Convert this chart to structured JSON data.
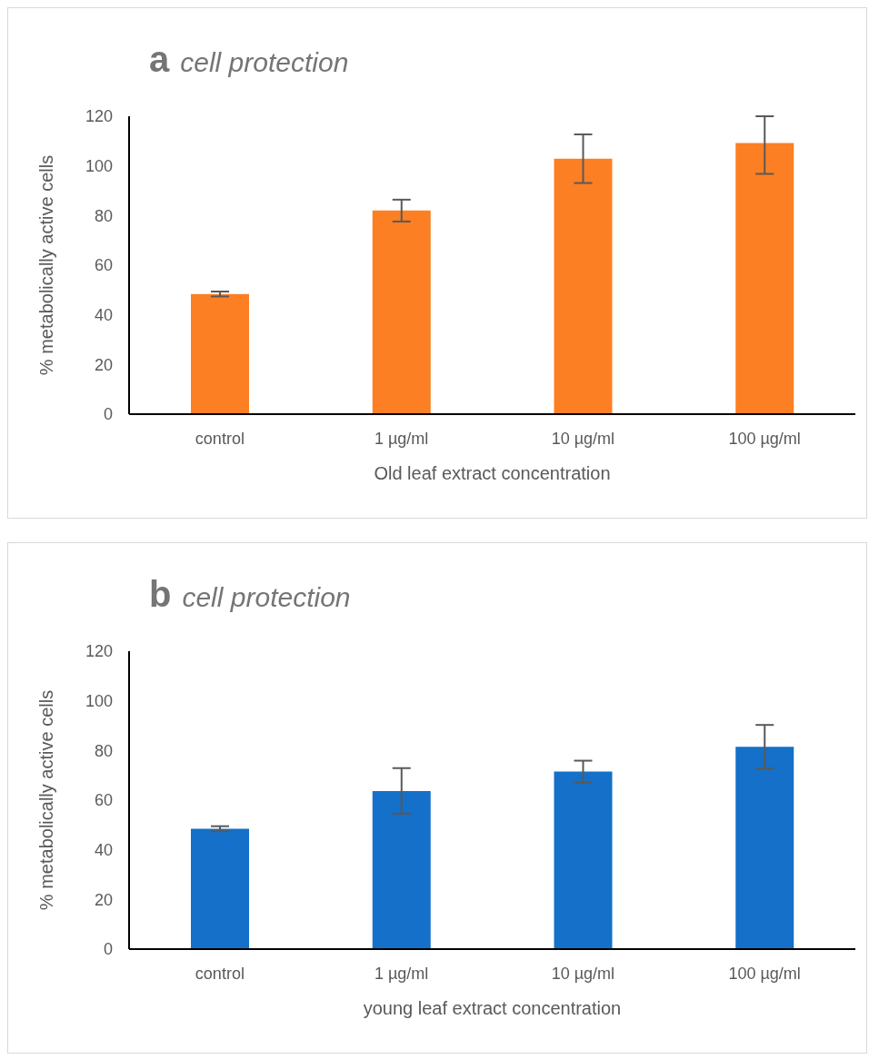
{
  "chart_data": [
    {
      "type": "bar",
      "title": "a",
      "subtitle": "cell protection",
      "xlabel": "Old leaf extract concentration",
      "ylabel": "% metabolically active cells",
      "categories": [
        "control",
        "1 µg/ml",
        "10 µg/ml",
        "100 µg/ml"
      ],
      "values": [
        48.4,
        82,
        102.9,
        109.2
      ],
      "color": "#fd7f23",
      "errors": [
        1,
        4.4,
        9.8,
        [
          96.8,
          120
        ]
      ],
      "ylim": [
        0,
        120
      ],
      "yticks": [
        0,
        20,
        40,
        60,
        80,
        100,
        120
      ],
      "grid": false,
      "legend": false
    },
    {
      "type": "bar",
      "title": "b",
      "subtitle": "cell protection",
      "xlabel": "young leaf extract concentration",
      "ylabel": "% metabolically active cells",
      "categories": [
        "control",
        "1 µg/ml",
        "10 µg/ml",
        "100 µg/ml"
      ],
      "values": [
        48.5,
        63.7,
        71.5,
        81.5
      ],
      "color": "#1470c8",
      "errors": [
        1,
        9.2,
        4.4,
        8.8
      ],
      "ylim": [
        0,
        120
      ],
      "yticks": [
        0,
        20,
        40,
        60,
        80,
        100,
        120
      ],
      "grid": false,
      "legend": false
    }
  ]
}
